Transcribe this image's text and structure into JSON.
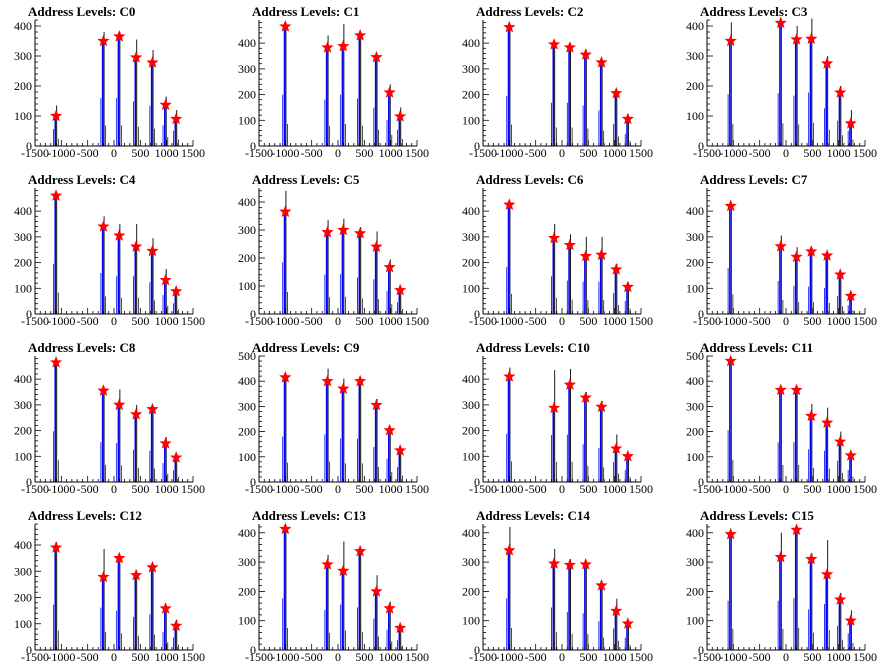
{
  "axes": {
    "x_tick_labels": [
      "-1500",
      "-1000",
      "-500",
      "0",
      "500",
      "1000",
      "1500"
    ],
    "xlim": [
      -1500,
      1500
    ]
  },
  "colors": {
    "hist_fill": "#0000ff",
    "hist_outline": "#000000",
    "marker": "#ff0000",
    "axis": "#000000"
  },
  "chart_data": [
    {
      "type": "bar",
      "title": "Address Levels: C0",
      "ylim": [
        0,
        420
      ],
      "y_ticks": [
        0,
        100,
        200,
        300,
        400
      ],
      "peaks": [
        {
          "x": -1100,
          "y": 100
        },
        {
          "x": -200,
          "y": 350
        },
        {
          "x": 100,
          "y": 365
        },
        {
          "x": 420,
          "y": 295
        },
        {
          "x": 730,
          "y": 278
        },
        {
          "x": 980,
          "y": 137
        },
        {
          "x": 1180,
          "y": 90
        }
      ],
      "bar_tops": [
        135,
        380,
        380,
        355,
        320,
        165,
        120
      ]
    },
    {
      "type": "bar",
      "title": "Address Levels: C1",
      "ylim": [
        0,
        490
      ],
      "y_ticks": [
        0,
        100,
        200,
        300,
        400
      ],
      "peaks": [
        {
          "x": -1000,
          "y": 465
        },
        {
          "x": -200,
          "y": 383
        },
        {
          "x": 100,
          "y": 388
        },
        {
          "x": 420,
          "y": 430
        },
        {
          "x": 730,
          "y": 345
        },
        {
          "x": 980,
          "y": 208
        },
        {
          "x": 1180,
          "y": 115
        }
      ],
      "bar_tops": [
        475,
        430,
        475,
        440,
        355,
        240,
        150
      ]
    },
    {
      "type": "bar",
      "title": "Address Levels: C2",
      "ylim": [
        0,
        490
      ],
      "y_ticks": [
        0,
        100,
        200,
        300,
        400
      ],
      "peaks": [
        {
          "x": -1000,
          "y": 462
        },
        {
          "x": -150,
          "y": 395
        },
        {
          "x": 150,
          "y": 383
        },
        {
          "x": 450,
          "y": 355
        },
        {
          "x": 750,
          "y": 325
        },
        {
          "x": 1030,
          "y": 205
        },
        {
          "x": 1250,
          "y": 105
        }
      ],
      "bar_tops": [
        465,
        400,
        400,
        375,
        330,
        205,
        110
      ]
    },
    {
      "type": "bar",
      "title": "Address Levels: C3",
      "ylim": [
        0,
        420
      ],
      "y_ticks": [
        0,
        100,
        200,
        300,
        400
      ],
      "peaks": [
        {
          "x": -1050,
          "y": 350
        },
        {
          "x": -100,
          "y": 410
        },
        {
          "x": 200,
          "y": 355
        },
        {
          "x": 480,
          "y": 357
        },
        {
          "x": 780,
          "y": 275
        },
        {
          "x": 1030,
          "y": 178
        },
        {
          "x": 1230,
          "y": 75
        }
      ],
      "bar_tops": [
        412,
        420,
        400,
        425,
        300,
        200,
        120
      ]
    },
    {
      "type": "bar",
      "title": "Address Levels: C4",
      "ylim": [
        0,
        490
      ],
      "y_ticks": [
        0,
        100,
        200,
        300,
        400
      ],
      "peaks": [
        {
          "x": -1100,
          "y": 460
        },
        {
          "x": -200,
          "y": 340
        },
        {
          "x": 100,
          "y": 305
        },
        {
          "x": 420,
          "y": 262
        },
        {
          "x": 730,
          "y": 245
        },
        {
          "x": 980,
          "y": 132
        },
        {
          "x": 1180,
          "y": 88
        }
      ],
      "bar_tops": [
        465,
        380,
        350,
        350,
        295,
        175,
        100
      ]
    },
    {
      "type": "bar",
      "title": "Address Levels: C5",
      "ylim": [
        0,
        450
      ],
      "y_ticks": [
        0,
        100,
        200,
        300,
        400
      ],
      "peaks": [
        {
          "x": -1000,
          "y": 365
        },
        {
          "x": -200,
          "y": 292
        },
        {
          "x": 100,
          "y": 300
        },
        {
          "x": 420,
          "y": 288
        },
        {
          "x": 730,
          "y": 240
        },
        {
          "x": 980,
          "y": 167
        },
        {
          "x": 1180,
          "y": 85
        }
      ],
      "bar_tops": [
        440,
        335,
        340,
        310,
        295,
        195,
        100
      ]
    },
    {
      "type": "bar",
      "title": "Address Levels: C6",
      "ylim": [
        0,
        490
      ],
      "y_ticks": [
        0,
        100,
        200,
        300,
        400
      ],
      "peaks": [
        {
          "x": -1000,
          "y": 425
        },
        {
          "x": -150,
          "y": 295
        },
        {
          "x": 150,
          "y": 268
        },
        {
          "x": 450,
          "y": 225
        },
        {
          "x": 750,
          "y": 230
        },
        {
          "x": 1030,
          "y": 173
        },
        {
          "x": 1250,
          "y": 105
        }
      ],
      "bar_tops": [
        435,
        350,
        310,
        300,
        300,
        195,
        120
      ]
    },
    {
      "type": "bar",
      "title": "Address Levels: C7",
      "ylim": [
        0,
        490
      ],
      "y_ticks": [
        0,
        100,
        200,
        300,
        400
      ],
      "peaks": [
        {
          "x": -1050,
          "y": 420
        },
        {
          "x": -100,
          "y": 263
        },
        {
          "x": 200,
          "y": 222
        },
        {
          "x": 480,
          "y": 243
        },
        {
          "x": 780,
          "y": 227
        },
        {
          "x": 1030,
          "y": 153
        },
        {
          "x": 1230,
          "y": 70
        }
      ],
      "bar_tops": [
        425,
        305,
        260,
        255,
        240,
        165,
        80
      ]
    },
    {
      "type": "bar",
      "title": "Address Levels: C8",
      "ylim": [
        0,
        490
      ],
      "y_ticks": [
        0,
        100,
        200,
        300,
        400
      ],
      "peaks": [
        {
          "x": -1100,
          "y": 465
        },
        {
          "x": -200,
          "y": 355
        },
        {
          "x": 100,
          "y": 300
        },
        {
          "x": 420,
          "y": 263
        },
        {
          "x": 730,
          "y": 283
        },
        {
          "x": 980,
          "y": 150
        },
        {
          "x": 1180,
          "y": 95
        }
      ],
      "bar_tops": [
        470,
        370,
        360,
        300,
        290,
        175,
        110
      ]
    },
    {
      "type": "bar",
      "title": "Address Levels: C9",
      "ylim": [
        0,
        500
      ],
      "y_ticks": [
        0,
        100,
        200,
        300,
        400,
        500
      ],
      "peaks": [
        {
          "x": -1000,
          "y": 415
        },
        {
          "x": -200,
          "y": 400
        },
        {
          "x": 100,
          "y": 370
        },
        {
          "x": 420,
          "y": 400
        },
        {
          "x": 730,
          "y": 305
        },
        {
          "x": 980,
          "y": 205
        },
        {
          "x": 1180,
          "y": 125
        }
      ],
      "bar_tops": [
        430,
        450,
        410,
        410,
        330,
        220,
        140
      ]
    },
    {
      "type": "bar",
      "title": "Address Levels: C10",
      "ylim": [
        0,
        490
      ],
      "y_ticks": [
        0,
        100,
        200,
        300,
        400
      ],
      "peaks": [
        {
          "x": -1000,
          "y": 410
        },
        {
          "x": -150,
          "y": 288
        },
        {
          "x": 150,
          "y": 378
        },
        {
          "x": 450,
          "y": 328
        },
        {
          "x": 750,
          "y": 292
        },
        {
          "x": 1030,
          "y": 130
        },
        {
          "x": 1250,
          "y": 100
        }
      ],
      "bar_tops": [
        445,
        435,
        440,
        350,
        315,
        185,
        110
      ]
    },
    {
      "type": "bar",
      "title": "Address Levels: C11",
      "ylim": [
        0,
        500
      ],
      "y_ticks": [
        0,
        100,
        200,
        300,
        400,
        500
      ],
      "peaks": [
        {
          "x": -1050,
          "y": 480
        },
        {
          "x": -100,
          "y": 365
        },
        {
          "x": 200,
          "y": 365
        },
        {
          "x": 480,
          "y": 262
        },
        {
          "x": 780,
          "y": 235
        },
        {
          "x": 1030,
          "y": 160
        },
        {
          "x": 1230,
          "y": 105
        }
      ],
      "bar_tops": [
        490,
        375,
        375,
        310,
        295,
        200,
        115
      ]
    },
    {
      "type": "bar",
      "title": "Address Levels: C12",
      "ylim": [
        0,
        480
      ],
      "y_ticks": [
        0,
        100,
        200,
        300,
        400
      ],
      "peaks": [
        {
          "x": -1100,
          "y": 390
        },
        {
          "x": -200,
          "y": 278
        },
        {
          "x": 100,
          "y": 350
        },
        {
          "x": 420,
          "y": 285
        },
        {
          "x": 730,
          "y": 315
        },
        {
          "x": 980,
          "y": 158
        },
        {
          "x": 1180,
          "y": 92
        }
      ],
      "bar_tops": [
        410,
        385,
        355,
        300,
        325,
        165,
        115
      ]
    },
    {
      "type": "bar",
      "title": "Address Levels: C13",
      "ylim": [
        0,
        430
      ],
      "y_ticks": [
        0,
        100,
        200,
        300,
        400
      ],
      "peaks": [
        {
          "x": -1000,
          "y": 413
        },
        {
          "x": -200,
          "y": 292
        },
        {
          "x": 100,
          "y": 270
        },
        {
          "x": 420,
          "y": 337
        },
        {
          "x": 730,
          "y": 200
        },
        {
          "x": 980,
          "y": 142
        },
        {
          "x": 1180,
          "y": 75
        }
      ],
      "bar_tops": [
        420,
        325,
        370,
        345,
        255,
        165,
        80
      ]
    },
    {
      "type": "bar",
      "title": "Address Levels: C14",
      "ylim": [
        0,
        430
      ],
      "y_ticks": [
        0,
        100,
        200,
        300,
        400
      ],
      "peaks": [
        {
          "x": -1000,
          "y": 340
        },
        {
          "x": -150,
          "y": 295
        },
        {
          "x": 150,
          "y": 290
        },
        {
          "x": 450,
          "y": 292
        },
        {
          "x": 750,
          "y": 220
        },
        {
          "x": 1030,
          "y": 133
        },
        {
          "x": 1250,
          "y": 90
        }
      ],
      "bar_tops": [
        420,
        345,
        310,
        300,
        235,
        175,
        100
      ]
    },
    {
      "type": "bar",
      "title": "Address Levels: C15",
      "ylim": [
        0,
        430
      ],
      "y_ticks": [
        0,
        100,
        200,
        300,
        400
      ],
      "peaks": [
        {
          "x": -1050,
          "y": 395
        },
        {
          "x": -100,
          "y": 317
        },
        {
          "x": 200,
          "y": 410
        },
        {
          "x": 480,
          "y": 310
        },
        {
          "x": 780,
          "y": 258
        },
        {
          "x": 1030,
          "y": 172
        },
        {
          "x": 1230,
          "y": 100
        }
      ],
      "bar_tops": [
        400,
        400,
        420,
        330,
        375,
        195,
        135
      ]
    }
  ]
}
